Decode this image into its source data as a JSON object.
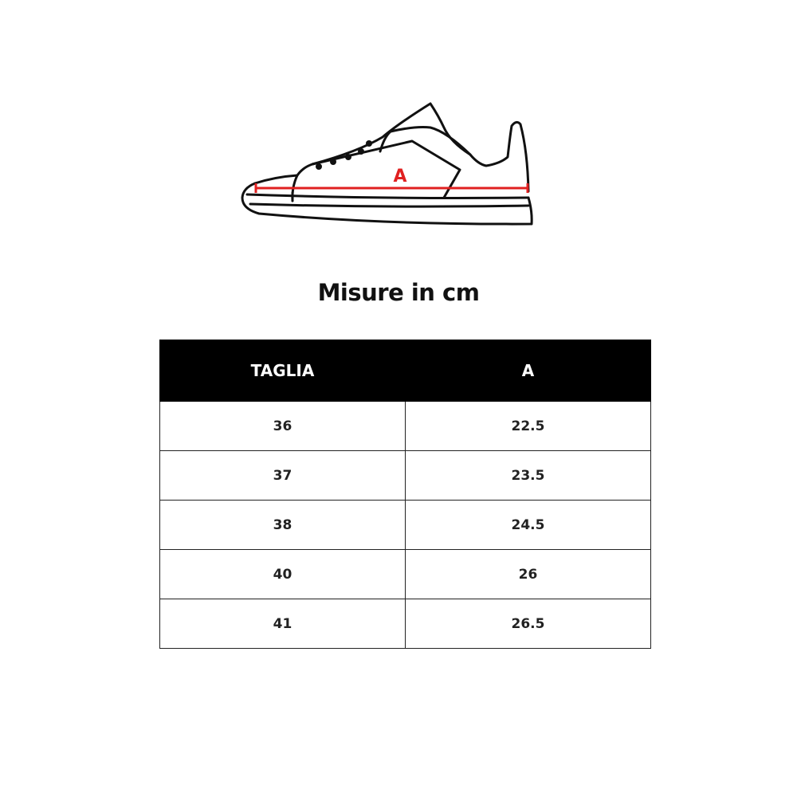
{
  "diagram": {
    "measure_label": "A",
    "measure_color": "#e02020"
  },
  "title": "Misure in cm",
  "table": {
    "headers": [
      "TAGLIA",
      "A"
    ],
    "rows": [
      [
        "36",
        "22.5"
      ],
      [
        "37",
        "23.5"
      ],
      [
        "38",
        "24.5"
      ],
      [
        "40",
        "26"
      ],
      [
        "41",
        "26.5"
      ]
    ]
  }
}
